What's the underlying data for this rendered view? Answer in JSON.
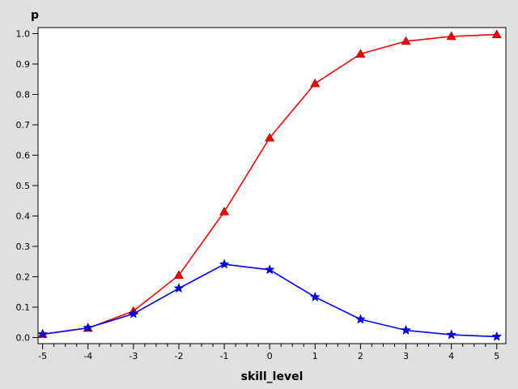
{
  "chart_data": {
    "type": "line",
    "title": "",
    "xlabel": "skill_level",
    "ylabel": "p",
    "xlim": [
      -5.1,
      5.2
    ],
    "ylim": [
      -0.02,
      1.02
    ],
    "x": [
      -5,
      -4,
      -3,
      -2,
      -1,
      0,
      1,
      2,
      3,
      4,
      5
    ],
    "xticks": [
      "-5",
      "-4",
      "-3",
      "-2",
      "-1",
      "0",
      "1",
      "2",
      "3",
      "4",
      "5"
    ],
    "yticks": [
      "0.0",
      "0.1",
      "0.2",
      "0.3",
      "0.4",
      "0.5",
      "0.6",
      "0.7",
      "0.8",
      "0.9",
      "1.0"
    ],
    "grid": false,
    "legend": "none",
    "series": [
      {
        "color": "#ff0000",
        "marker": "triangle",
        "values": [
          0.011,
          0.031,
          0.087,
          0.205,
          0.414,
          0.657,
          0.836,
          0.933,
          0.975,
          0.991,
          0.997
        ]
      },
      {
        "color": "#0000ff",
        "marker": "star",
        "values": [
          0.011,
          0.032,
          0.078,
          0.162,
          0.241,
          0.223,
          0.133,
          0.06,
          0.024,
          0.009,
          0.003
        ]
      }
    ]
  }
}
